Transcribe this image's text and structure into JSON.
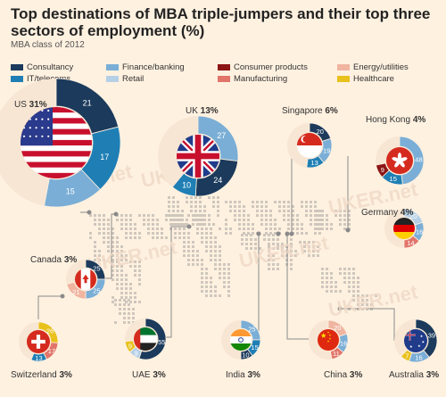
{
  "chart_data": {
    "type": "pie",
    "title": "Top destinations of MBA triple-jumpers and their top three sectors of employment (%)",
    "subtitle": "MBA class of 2012",
    "watermark": "UKER.net",
    "colors": {
      "Consultancy": "#1b3a5c",
      "IT/telecoms": "#1f7fb5",
      "Finance/banking": "#7aaed6",
      "Retail": "#b5d0e6",
      "Consumer products": "#8c1515",
      "Manufacturing": "#e1756a",
      "Energy/utilities": "#f0b5a0",
      "Healthcare": "#e8c11c"
    },
    "legend": [
      "Consultancy",
      "IT/telecoms",
      "Finance/banking",
      "Retail",
      "Consumer products",
      "Manufacturing",
      "Energy/utilities",
      "Healthcare"
    ],
    "countries": [
      {
        "name": "US",
        "pct": "31%",
        "flag": "us",
        "slices": [
          {
            "sector": "Consultancy",
            "value": 21
          },
          {
            "sector": "IT/telecoms",
            "value": 17
          },
          {
            "sector": "Finance/banking",
            "value": 15
          }
        ]
      },
      {
        "name": "UK",
        "pct": "13%",
        "flag": "uk",
        "slices": [
          {
            "sector": "Finance/banking",
            "value": 27
          },
          {
            "sector": "Consultancy",
            "value": 24
          },
          {
            "sector": "IT/telecoms",
            "value": 10
          }
        ]
      },
      {
        "name": "Singapore",
        "pct": "6%",
        "flag": "sg",
        "slices": [
          {
            "sector": "Consultancy",
            "value": 20
          },
          {
            "sector": "Finance/banking",
            "value": 19
          },
          {
            "sector": "IT/telecoms",
            "value": 13
          }
        ]
      },
      {
        "name": "Hong Kong",
        "pct": "4%",
        "flag": "hk",
        "slices": [
          {
            "sector": "Finance/banking",
            "value": 48
          },
          {
            "sector": "IT/telecoms",
            "value": 15
          },
          {
            "sector": "Consumer products",
            "value": 9
          }
        ]
      },
      {
        "name": "Germany",
        "pct": "4%",
        "flag": "de",
        "slices": [
          {
            "sector": "Retail",
            "value": 20
          },
          {
            "sector": "Finance/banking",
            "value": 16
          },
          {
            "sector": "Manufacturing",
            "value": 14
          }
        ]
      },
      {
        "name": "Canada",
        "pct": "3%",
        "flag": "ca",
        "slices": [
          {
            "sector": "Consultancy",
            "value": 25
          },
          {
            "sector": "Finance/banking",
            "value": 25
          },
          {
            "sector": "Energy/utilities",
            "value": 21
          }
        ]
      },
      {
        "name": "Switzerland",
        "pct": "3%",
        "flag": "ch",
        "slices": [
          {
            "sector": "Healthcare",
            "value": 26
          },
          {
            "sector": "Manufacturing",
            "value": 17
          },
          {
            "sector": "IT/telecoms",
            "value": 13
          }
        ]
      },
      {
        "name": "UAE",
        "pct": "3%",
        "flag": "ae",
        "slices": [
          {
            "sector": "Consultancy",
            "value": 55
          },
          {
            "sector": "Retail",
            "value": 9
          },
          {
            "sector": "Healthcare",
            "value": 9
          }
        ]
      },
      {
        "name": "India",
        "pct": "3%",
        "flag": "in",
        "slices": [
          {
            "sector": "Finance/banking",
            "value": 25
          },
          {
            "sector": "IT/telecoms",
            "value": 15
          },
          {
            "sector": "Consultancy",
            "value": 10
          }
        ]
      },
      {
        "name": "China",
        "pct": "3%",
        "flag": "cn",
        "slices": [
          {
            "sector": "Energy/utilities",
            "value": 20
          },
          {
            "sector": "Finance/banking",
            "value": 16
          },
          {
            "sector": "Manufacturing",
            "value": 11
          }
        ]
      },
      {
        "name": "Australia",
        "pct": "3%",
        "flag": "au",
        "slices": [
          {
            "sector": "Consultancy",
            "value": 39
          },
          {
            "sector": "Finance/banking",
            "value": 16
          },
          {
            "sector": "Healthcare",
            "value": 7
          }
        ]
      }
    ]
  }
}
